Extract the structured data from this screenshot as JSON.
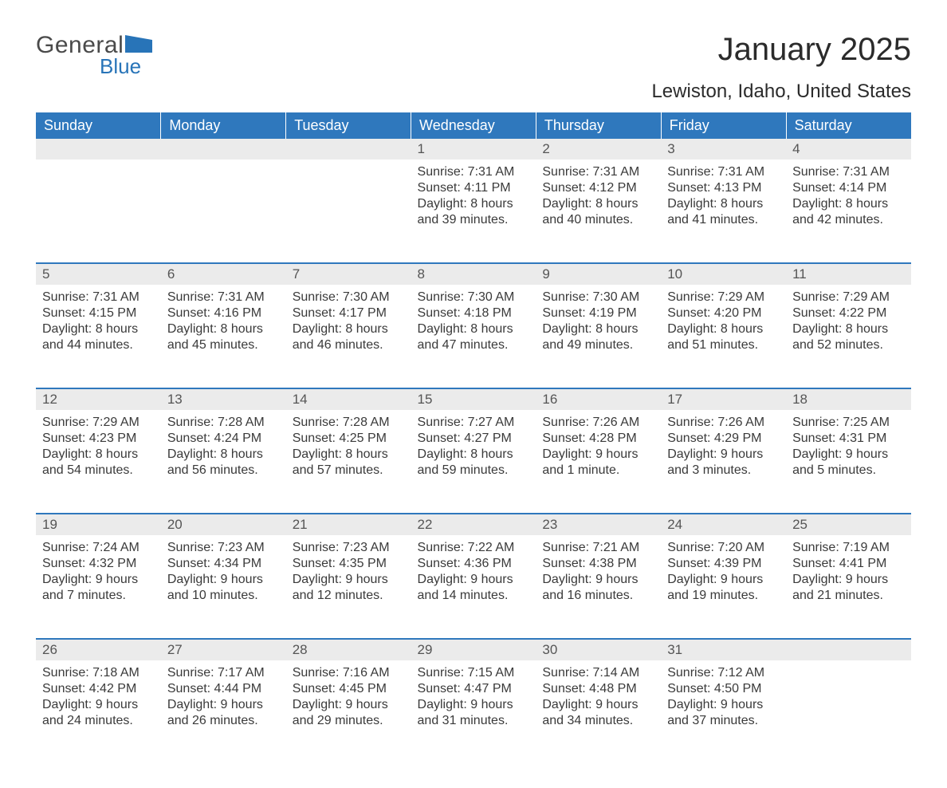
{
  "brand": {
    "name_part1": "General",
    "name_part2": "Blue"
  },
  "header": {
    "month_title": "January 2025",
    "location": "Lewiston, Idaho, United States"
  },
  "colors": {
    "header_bg": "#2f78bd",
    "header_text": "#ffffff",
    "daynum_bg": "#ebebeb",
    "body_text": "#3a3a3a",
    "rule": "#2f78bd",
    "brand_blue": "#2874b8",
    "page_bg": "#ffffff"
  },
  "calendar": {
    "weekday_labels": [
      "Sunday",
      "Monday",
      "Tuesday",
      "Wednesday",
      "Thursday",
      "Friday",
      "Saturday"
    ],
    "weeks": [
      [
        null,
        null,
        null,
        {
          "day": "1",
          "sunrise": "Sunrise: 7:31 AM",
          "sunset": "Sunset: 4:11 PM",
          "daylight1": "Daylight: 8 hours",
          "daylight2": "and 39 minutes."
        },
        {
          "day": "2",
          "sunrise": "Sunrise: 7:31 AM",
          "sunset": "Sunset: 4:12 PM",
          "daylight1": "Daylight: 8 hours",
          "daylight2": "and 40 minutes."
        },
        {
          "day": "3",
          "sunrise": "Sunrise: 7:31 AM",
          "sunset": "Sunset: 4:13 PM",
          "daylight1": "Daylight: 8 hours",
          "daylight2": "and 41 minutes."
        },
        {
          "day": "4",
          "sunrise": "Sunrise: 7:31 AM",
          "sunset": "Sunset: 4:14 PM",
          "daylight1": "Daylight: 8 hours",
          "daylight2": "and 42 minutes."
        }
      ],
      [
        {
          "day": "5",
          "sunrise": "Sunrise: 7:31 AM",
          "sunset": "Sunset: 4:15 PM",
          "daylight1": "Daylight: 8 hours",
          "daylight2": "and 44 minutes."
        },
        {
          "day": "6",
          "sunrise": "Sunrise: 7:31 AM",
          "sunset": "Sunset: 4:16 PM",
          "daylight1": "Daylight: 8 hours",
          "daylight2": "and 45 minutes."
        },
        {
          "day": "7",
          "sunrise": "Sunrise: 7:30 AM",
          "sunset": "Sunset: 4:17 PM",
          "daylight1": "Daylight: 8 hours",
          "daylight2": "and 46 minutes."
        },
        {
          "day": "8",
          "sunrise": "Sunrise: 7:30 AM",
          "sunset": "Sunset: 4:18 PM",
          "daylight1": "Daylight: 8 hours",
          "daylight2": "and 47 minutes."
        },
        {
          "day": "9",
          "sunrise": "Sunrise: 7:30 AM",
          "sunset": "Sunset: 4:19 PM",
          "daylight1": "Daylight: 8 hours",
          "daylight2": "and 49 minutes."
        },
        {
          "day": "10",
          "sunrise": "Sunrise: 7:29 AM",
          "sunset": "Sunset: 4:20 PM",
          "daylight1": "Daylight: 8 hours",
          "daylight2": "and 51 minutes."
        },
        {
          "day": "11",
          "sunrise": "Sunrise: 7:29 AM",
          "sunset": "Sunset: 4:22 PM",
          "daylight1": "Daylight: 8 hours",
          "daylight2": "and 52 minutes."
        }
      ],
      [
        {
          "day": "12",
          "sunrise": "Sunrise: 7:29 AM",
          "sunset": "Sunset: 4:23 PM",
          "daylight1": "Daylight: 8 hours",
          "daylight2": "and 54 minutes."
        },
        {
          "day": "13",
          "sunrise": "Sunrise: 7:28 AM",
          "sunset": "Sunset: 4:24 PM",
          "daylight1": "Daylight: 8 hours",
          "daylight2": "and 56 minutes."
        },
        {
          "day": "14",
          "sunrise": "Sunrise: 7:28 AM",
          "sunset": "Sunset: 4:25 PM",
          "daylight1": "Daylight: 8 hours",
          "daylight2": "and 57 minutes."
        },
        {
          "day": "15",
          "sunrise": "Sunrise: 7:27 AM",
          "sunset": "Sunset: 4:27 PM",
          "daylight1": "Daylight: 8 hours",
          "daylight2": "and 59 minutes."
        },
        {
          "day": "16",
          "sunrise": "Sunrise: 7:26 AM",
          "sunset": "Sunset: 4:28 PM",
          "daylight1": "Daylight: 9 hours",
          "daylight2": "and 1 minute."
        },
        {
          "day": "17",
          "sunrise": "Sunrise: 7:26 AM",
          "sunset": "Sunset: 4:29 PM",
          "daylight1": "Daylight: 9 hours",
          "daylight2": "and 3 minutes."
        },
        {
          "day": "18",
          "sunrise": "Sunrise: 7:25 AM",
          "sunset": "Sunset: 4:31 PM",
          "daylight1": "Daylight: 9 hours",
          "daylight2": "and 5 minutes."
        }
      ],
      [
        {
          "day": "19",
          "sunrise": "Sunrise: 7:24 AM",
          "sunset": "Sunset: 4:32 PM",
          "daylight1": "Daylight: 9 hours",
          "daylight2": "and 7 minutes."
        },
        {
          "day": "20",
          "sunrise": "Sunrise: 7:23 AM",
          "sunset": "Sunset: 4:34 PM",
          "daylight1": "Daylight: 9 hours",
          "daylight2": "and 10 minutes."
        },
        {
          "day": "21",
          "sunrise": "Sunrise: 7:23 AM",
          "sunset": "Sunset: 4:35 PM",
          "daylight1": "Daylight: 9 hours",
          "daylight2": "and 12 minutes."
        },
        {
          "day": "22",
          "sunrise": "Sunrise: 7:22 AM",
          "sunset": "Sunset: 4:36 PM",
          "daylight1": "Daylight: 9 hours",
          "daylight2": "and 14 minutes."
        },
        {
          "day": "23",
          "sunrise": "Sunrise: 7:21 AM",
          "sunset": "Sunset: 4:38 PM",
          "daylight1": "Daylight: 9 hours",
          "daylight2": "and 16 minutes."
        },
        {
          "day": "24",
          "sunrise": "Sunrise: 7:20 AM",
          "sunset": "Sunset: 4:39 PM",
          "daylight1": "Daylight: 9 hours",
          "daylight2": "and 19 minutes."
        },
        {
          "day": "25",
          "sunrise": "Sunrise: 7:19 AM",
          "sunset": "Sunset: 4:41 PM",
          "daylight1": "Daylight: 9 hours",
          "daylight2": "and 21 minutes."
        }
      ],
      [
        {
          "day": "26",
          "sunrise": "Sunrise: 7:18 AM",
          "sunset": "Sunset: 4:42 PM",
          "daylight1": "Daylight: 9 hours",
          "daylight2": "and 24 minutes."
        },
        {
          "day": "27",
          "sunrise": "Sunrise: 7:17 AM",
          "sunset": "Sunset: 4:44 PM",
          "daylight1": "Daylight: 9 hours",
          "daylight2": "and 26 minutes."
        },
        {
          "day": "28",
          "sunrise": "Sunrise: 7:16 AM",
          "sunset": "Sunset: 4:45 PM",
          "daylight1": "Daylight: 9 hours",
          "daylight2": "and 29 minutes."
        },
        {
          "day": "29",
          "sunrise": "Sunrise: 7:15 AM",
          "sunset": "Sunset: 4:47 PM",
          "daylight1": "Daylight: 9 hours",
          "daylight2": "and 31 minutes."
        },
        {
          "day": "30",
          "sunrise": "Sunrise: 7:14 AM",
          "sunset": "Sunset: 4:48 PM",
          "daylight1": "Daylight: 9 hours",
          "daylight2": "and 34 minutes."
        },
        {
          "day": "31",
          "sunrise": "Sunrise: 7:12 AM",
          "sunset": "Sunset: 4:50 PM",
          "daylight1": "Daylight: 9 hours",
          "daylight2": "and 37 minutes."
        },
        null
      ]
    ]
  }
}
